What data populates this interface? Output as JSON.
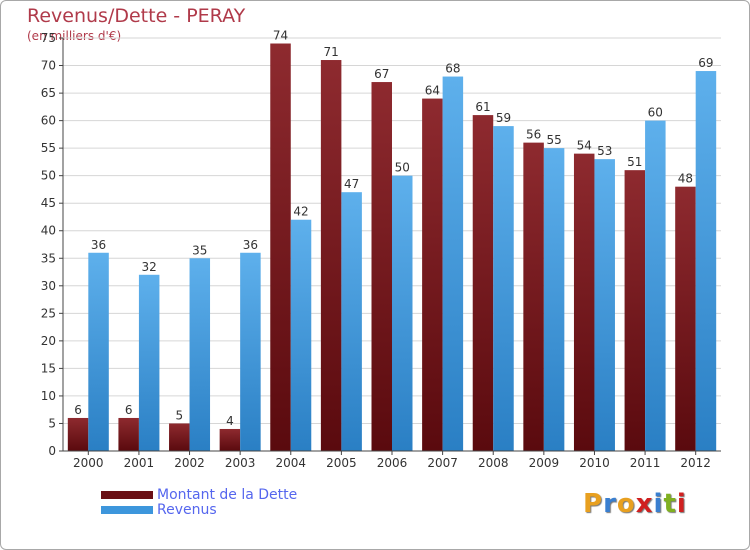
{
  "colors": {
    "title": "#b03a4a",
    "dette": "#7a1a1f",
    "revenus": "#3d96dc",
    "legend_text": "#5566ee",
    "grid": "#d6d6d6",
    "axis": "#444444"
  },
  "legend": {
    "items": [
      {
        "label": "Montant de la Dette",
        "color": "#6a0f14"
      },
      {
        "label": "Revenus",
        "color": "#3d96dc"
      }
    ]
  },
  "logo": {
    "letters": [
      "P",
      "r",
      "o",
      "x",
      "i",
      "t",
      "i"
    ],
    "colors": [
      "#e8a020",
      "#3a7fd0",
      "#e8a020",
      "#d02020",
      "#3a7fd0",
      "#80b020",
      "#d02020"
    ]
  },
  "chart_data": {
    "type": "bar",
    "title": "Revenus/Dette - PERAY",
    "subtitle": "(en milliers d'€)",
    "xlabel": "",
    "ylabel": "",
    "ylim": [
      0,
      75
    ],
    "yticks": [
      0,
      5,
      10,
      15,
      20,
      25,
      30,
      35,
      40,
      45,
      50,
      55,
      60,
      65,
      70,
      75
    ],
    "grid": true,
    "legend_position": "bottom-left",
    "categories": [
      "2000",
      "2001",
      "2002",
      "2003",
      "2004",
      "2005",
      "2006",
      "2007",
      "2008",
      "2009",
      "2010",
      "2011",
      "2012"
    ],
    "series": [
      {
        "name": "Montant de la Dette",
        "color": "#7a1a1f",
        "values": [
          6,
          6,
          5,
          4,
          74,
          71,
          67,
          64,
          61,
          56,
          54,
          51,
          48
        ]
      },
      {
        "name": "Revenus",
        "color": "#3d96dc",
        "values": [
          36,
          32,
          35,
          36,
          42,
          47,
          50,
          68,
          59,
          55,
          53,
          60,
          69
        ]
      }
    ]
  }
}
